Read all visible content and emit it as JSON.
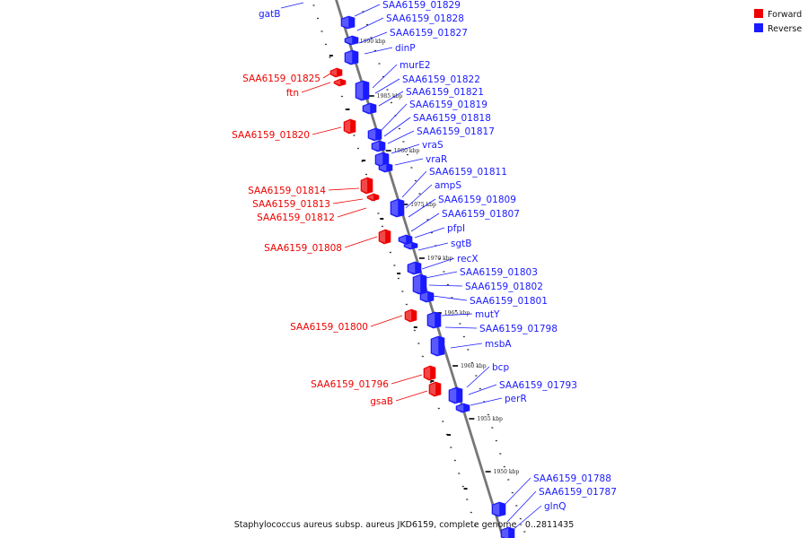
{
  "caption": "Staphylococcus aureus subsp. aureus JKD6159, complete genome - 0..2811435",
  "legend": [
    {
      "label": "Forward",
      "color": "#ee0000"
    },
    {
      "label": "Reverse",
      "color": "#1a1aff"
    }
  ],
  "colors": {
    "forward": "#ee0000",
    "reverse": "#1a1aff",
    "backbone": "#777777"
  },
  "ticks": [
    "1990 kbp",
    "1985 kbp",
    "1980 kbp",
    "1975 kbp",
    "1970 kbp",
    "1965 kbp",
    "1960 kbp",
    "1955 kbp",
    "1950 kbp"
  ],
  "reverse_genes": [
    "gatB",
    "SAA6159_01829",
    "SAA6159_01828",
    "SAA6159_01827",
    "dinP",
    "murE2",
    "SAA6159_01822",
    "SAA6159_01821",
    "SAA6159_01819",
    "SAA6159_01818",
    "SAA6159_01817",
    "vraS",
    "vraR",
    "SAA6159_01811",
    "ampS",
    "SAA6159_01809",
    "SAA6159_01807",
    "pfpI",
    "sgtB",
    "recX",
    "SAA6159_01803",
    "SAA6159_01802",
    "SAA6159_01801",
    "mutY",
    "SAA6159_01798",
    "msbA",
    "bcp",
    "SAA6159_01793",
    "perR",
    "SAA6159_01788",
    "SAA6159_01787",
    "glnQ"
  ],
  "forward_genes": [
    "SAA6159_01825",
    "ftn",
    "SAA6159_01820",
    "SAA6159_01814",
    "SAA6159_01813",
    "SAA6159_01812",
    "SAA6159_01808",
    "SAA6159_01800",
    "SAA6159_01796",
    "gsaB"
  ]
}
